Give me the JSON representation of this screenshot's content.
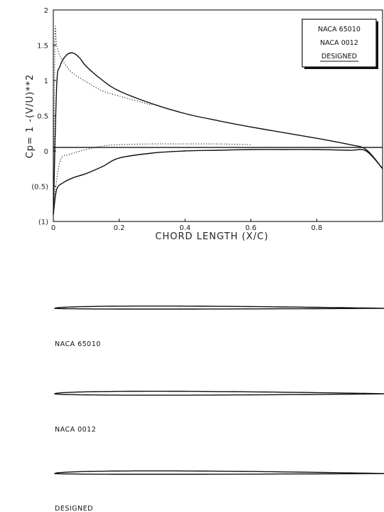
{
  "chart_data": {
    "type": "line",
    "title": "",
    "xlabel": "CHORD LENGTH (X/C)",
    "ylabel": "Cp= 1 -(V/U)**2",
    "xlim": [
      0,
      1
    ],
    "ylim": [
      -1,
      2
    ],
    "xticks": [
      "0",
      "0.2",
      "0.4",
      "0.6",
      "0.8"
    ],
    "yticks": [
      "2",
      "1.5",
      "1",
      "0.5",
      "0",
      "(0.5)",
      "(1)"
    ],
    "legend": {
      "position": "top-right",
      "entries": [
        "NACA 65010",
        "NACA 0012",
        "DESIGNED"
      ]
    },
    "series": [
      {
        "name": "NACA 65010",
        "style": "solid",
        "part": "upper",
        "x": [
          0,
          0.01,
          0.02,
          0.04,
          0.06,
          0.08,
          0.1,
          0.15,
          0.2,
          0.3,
          0.4,
          0.5,
          0.6,
          0.7,
          0.8,
          0.9,
          0.95,
          1.0
        ],
        "y": [
          -0.9,
          0.9,
          1.2,
          1.36,
          1.39,
          1.32,
          1.2,
          1.0,
          0.85,
          0.67,
          0.53,
          0.43,
          0.34,
          0.26,
          0.18,
          0.09,
          0.02,
          -0.25
        ]
      },
      {
        "name": "NACA 65010",
        "style": "solid",
        "part": "lower",
        "x": [
          0,
          0.01,
          0.03,
          0.06,
          0.1,
          0.15,
          0.2,
          0.3,
          0.4,
          0.5,
          0.6,
          0.7,
          0.8,
          0.9,
          0.95,
          1.0
        ],
        "y": [
          -0.9,
          -0.55,
          -0.45,
          -0.38,
          -0.32,
          -0.22,
          -0.1,
          -0.03,
          0.0,
          0.01,
          0.02,
          0.02,
          0.02,
          0.01,
          0.0,
          -0.25
        ]
      },
      {
        "name": "NACA 0012",
        "style": "dotted",
        "x": [
          0,
          0.005,
          0.01,
          0.02,
          0.04,
          0.06,
          0.1,
          0.15,
          0.2,
          0.3
        ],
        "y": [
          -1.0,
          1.6,
          1.5,
          1.35,
          1.2,
          1.1,
          0.98,
          0.85,
          0.78,
          0.65
        ]
      },
      {
        "name": "NACA 0012",
        "style": "dotted",
        "x": [
          0,
          0.02,
          0.05,
          0.1,
          0.15,
          0.2,
          0.3,
          0.4,
          0.5,
          0.6
        ],
        "y": [
          -0.8,
          -0.15,
          -0.05,
          0.02,
          0.07,
          0.09,
          0.1,
          0.1,
          0.1,
          0.09
        ]
      },
      {
        "name": "DESIGNED",
        "style": "solid",
        "x": [
          0,
          1.0
        ],
        "y": [
          0.05,
          0.05
        ]
      }
    ],
    "grid": false
  },
  "airfoils": [
    {
      "caption": "NACA 65010",
      "max_thickness": 0.1,
      "max_thickness_at": 0.4
    },
    {
      "caption": "NACA 0012",
      "max_thickness": 0.12,
      "max_thickness_at": 0.3
    },
    {
      "caption": "DESIGNED",
      "max_thickness": 0.11,
      "max_thickness_at": 0.25
    }
  ]
}
